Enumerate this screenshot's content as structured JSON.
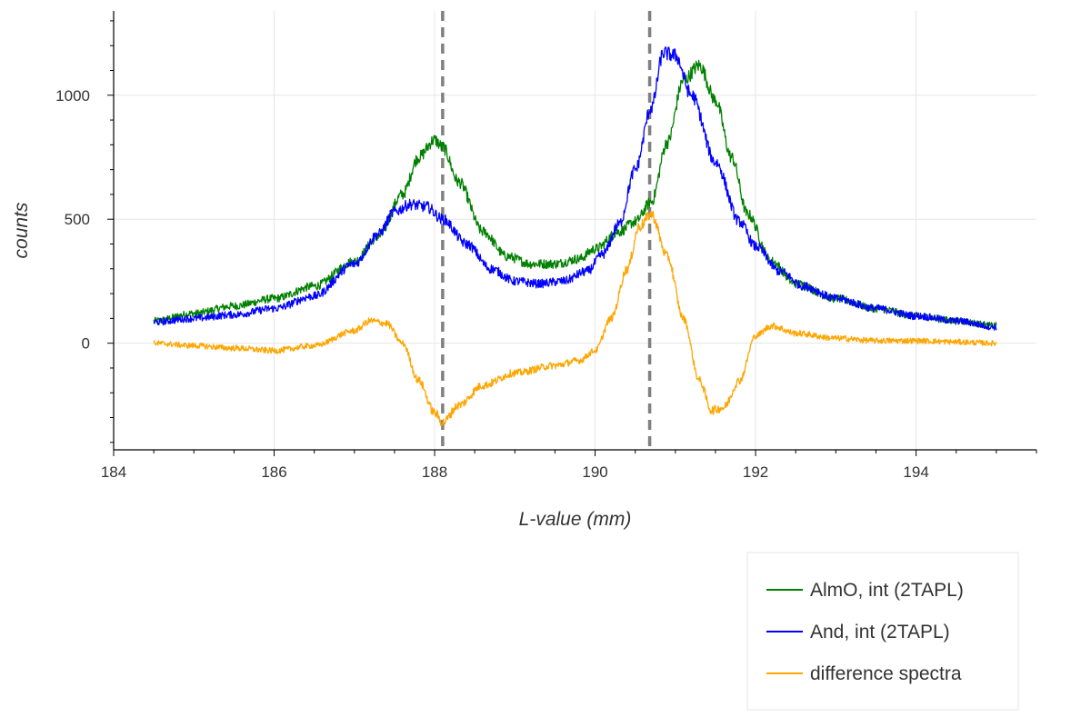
{
  "chart_data": {
    "type": "line",
    "title": "",
    "xlabel": "L-value (mm)",
    "ylabel": "counts",
    "xlim": [
      184,
      195.5
    ],
    "ylim": [
      -430,
      1340
    ],
    "xticks": [
      184,
      186,
      188,
      190,
      192,
      194
    ],
    "xtick_labels": [
      "184",
      "186",
      "188",
      "190",
      "192",
      "194"
    ],
    "yticks": [
      0,
      500,
      1000
    ],
    "ytick_labels": [
      "0",
      "500",
      "1000"
    ],
    "grid": true,
    "legend_position": "bottom-right (outside plot)",
    "vlines": [
      188.1,
      190.68
    ],
    "vline_color": "#808080",
    "series": [
      {
        "name": "AlmO, int (2TAPL)",
        "color": "#008000",
        "x": [
          184.5,
          185.0,
          185.5,
          186.0,
          186.5,
          187.0,
          187.3,
          187.6,
          187.8,
          188.0,
          188.1,
          188.3,
          188.6,
          188.9,
          189.2,
          189.5,
          189.8,
          190.0,
          190.3,
          190.5,
          190.7,
          190.9,
          191.1,
          191.3,
          191.5,
          191.7,
          191.9,
          192.2,
          192.5,
          193.0,
          193.5,
          194.0,
          194.5,
          195.0
        ],
        "y": [
          90,
          120,
          150,
          180,
          230,
          330,
          430,
          600,
          750,
          820,
          790,
          650,
          450,
          350,
          320,
          320,
          340,
          380,
          450,
          490,
          570,
          810,
          1060,
          1120,
          980,
          750,
          520,
          330,
          240,
          180,
          140,
          110,
          90,
          70
        ]
      },
      {
        "name": "And, int (2TAPL)",
        "color": "#0000ff",
        "x": [
          184.5,
          185.0,
          185.5,
          186.0,
          186.5,
          187.0,
          187.3,
          187.5,
          187.7,
          187.9,
          188.1,
          188.4,
          188.7,
          189.0,
          189.3,
          189.6,
          189.9,
          190.1,
          190.3,
          190.5,
          190.7,
          190.85,
          191.0,
          191.2,
          191.5,
          191.8,
          192.0,
          192.3,
          192.6,
          193.0,
          193.5,
          194.0,
          194.5,
          195.0
        ],
        "y": [
          85,
          100,
          115,
          140,
          190,
          320,
          440,
          530,
          560,
          550,
          500,
          400,
          300,
          250,
          240,
          250,
          290,
          360,
          480,
          700,
          950,
          1170,
          1160,
          1000,
          730,
          490,
          390,
          290,
          230,
          180,
          140,
          110,
          90,
          65
        ]
      },
      {
        "name": "difference spectra",
        "color": "#ffa500",
        "x": [
          184.5,
          185.0,
          185.5,
          186.0,
          186.5,
          187.0,
          187.2,
          187.4,
          187.6,
          187.8,
          188.0,
          188.1,
          188.3,
          188.6,
          189.0,
          189.5,
          189.8,
          190.0,
          190.2,
          190.4,
          190.55,
          190.7,
          190.9,
          191.1,
          191.3,
          191.45,
          191.6,
          191.8,
          192.0,
          192.2,
          192.5,
          193.0,
          193.5,
          194.0,
          194.5,
          195.0
        ],
        "y": [
          0,
          -10,
          -20,
          -30,
          -10,
          50,
          90,
          80,
          0,
          -150,
          -280,
          -320,
          -250,
          -170,
          -120,
          -90,
          -70,
          -30,
          100,
          300,
          470,
          520,
          350,
          100,
          -150,
          -270,
          -260,
          -150,
          30,
          70,
          40,
          20,
          10,
          10,
          5,
          0
        ]
      }
    ]
  }
}
